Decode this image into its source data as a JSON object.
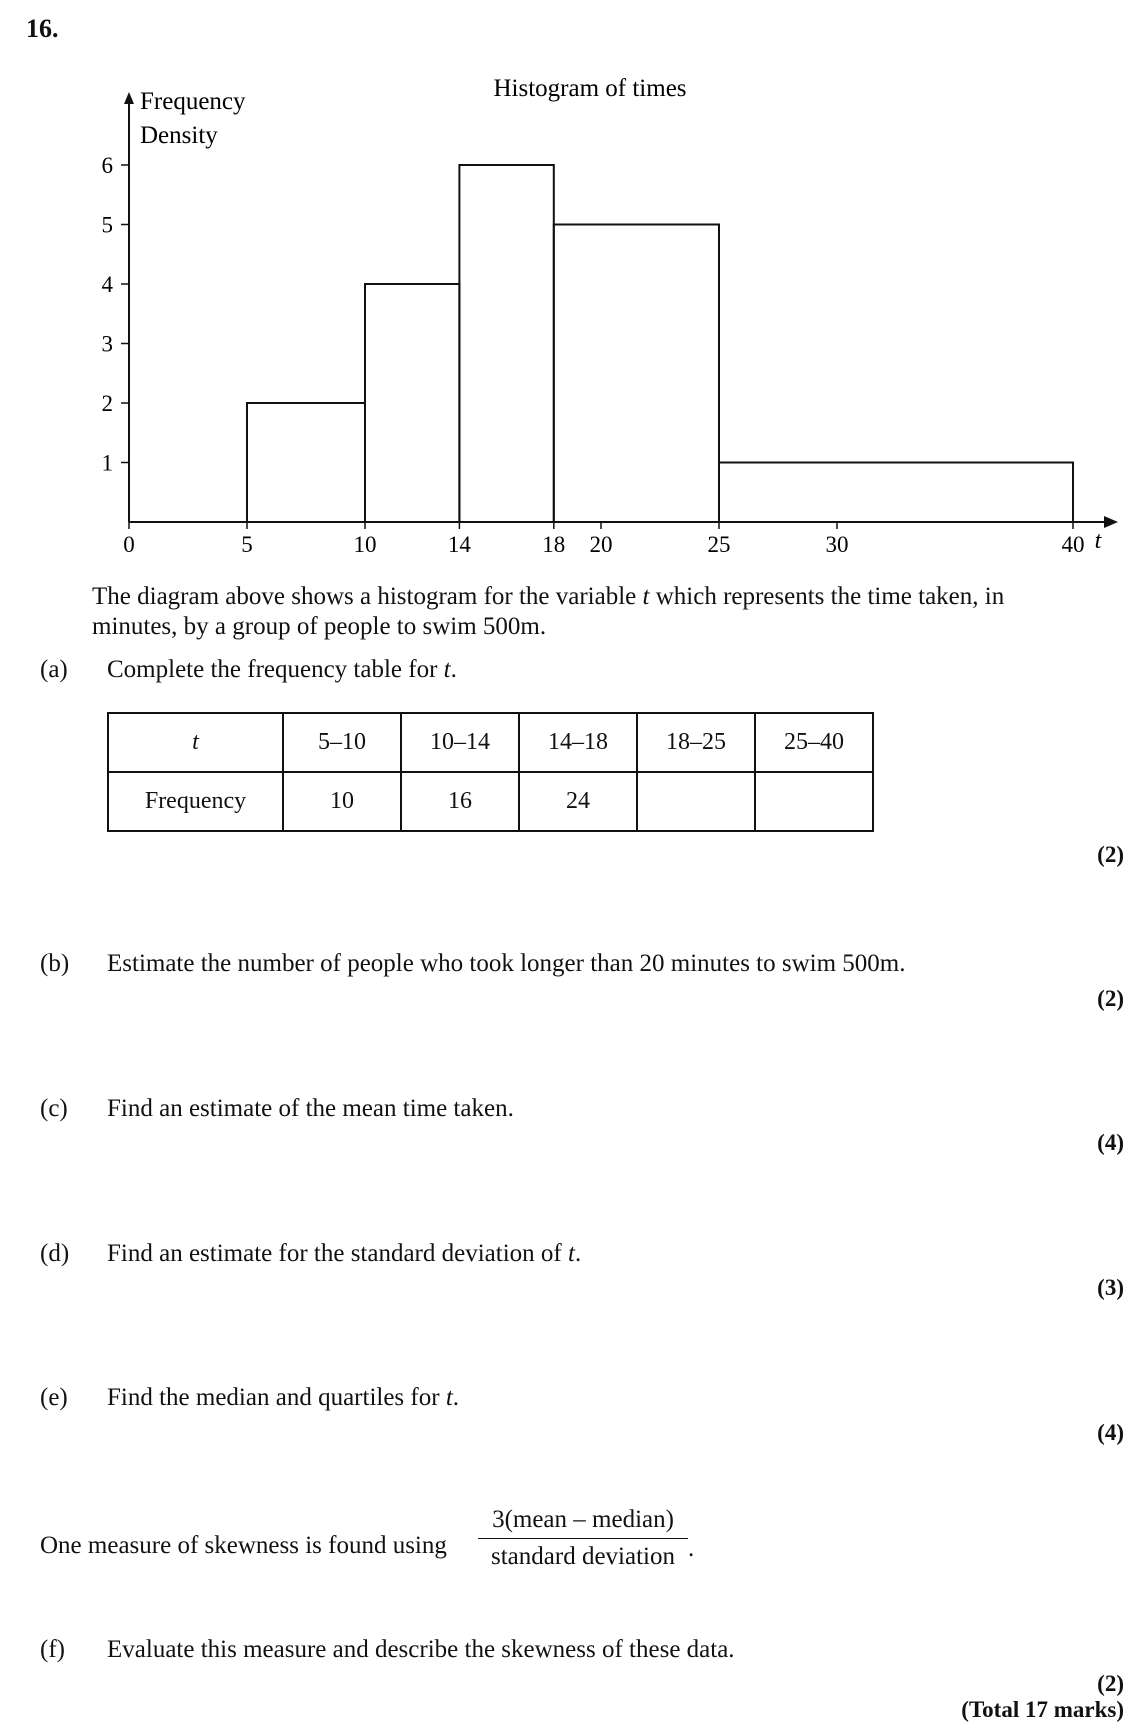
{
  "question_number": "16.",
  "chart_data": {
    "type": "bar",
    "title": "Histogram of times",
    "ylabel_line1": "Frequency",
    "ylabel_line2": "Density",
    "xlabel": "t",
    "ylim": [
      0,
      6
    ],
    "xlim": [
      0,
      40
    ],
    "y_ticks": [
      1,
      2,
      3,
      4,
      5,
      6
    ],
    "x_ticks": [
      0,
      5,
      10,
      14,
      18,
      20,
      25,
      30,
      40
    ],
    "bins": [
      {
        "from": 5,
        "to": 10,
        "value": 2
      },
      {
        "from": 10,
        "to": 14,
        "value": 4
      },
      {
        "from": 14,
        "to": 18,
        "value": 6
      },
      {
        "from": 18,
        "to": 25,
        "value": 5
      },
      {
        "from": 25,
        "to": 40,
        "value": 1
      }
    ],
    "grid": false
  },
  "intro": {
    "before_var": "The diagram above shows a histogram for the variable ",
    "var": "t",
    "after_var": " which represents the time taken, in minutes, by a group of people to swim 500m."
  },
  "parts": {
    "a": {
      "label": "(a)",
      "text": "Complete the frequency table for ",
      "var": "t",
      "end": ".",
      "marks": "(2)"
    },
    "b": {
      "label": "(b)",
      "text": "Estimate the number of people who took longer than 20 minutes to swim 500m.",
      "marks": "(2)"
    },
    "c": {
      "label": "(c)",
      "text": "Find an estimate of the mean time taken.",
      "marks": "(4)"
    },
    "d": {
      "label": "(d)",
      "text": "Find an estimate for the standard deviation of ",
      "var": "t",
      "end": ".",
      "marks": "(3)"
    },
    "e": {
      "label": "(e)",
      "text": "Find the median and quartiles for ",
      "var": "t",
      "end": ".",
      "marks": "(4)"
    },
    "f": {
      "label": "(f)",
      "text": "Evaluate this measure and describe the skewness of these data.",
      "marks": "(2)"
    }
  },
  "table": {
    "header": [
      "t",
      "5–10",
      "10–14",
      "14–18",
      "18–25",
      "25–40"
    ],
    "row_label": "Frequency",
    "values": [
      "10",
      "16",
      "24",
      "",
      ""
    ]
  },
  "skewness": {
    "text": "One measure of skewness is found using",
    "numerator": "3(mean – median)",
    "denominator": "standard deviation",
    "end": "."
  },
  "total": "(Total 17 marks)"
}
